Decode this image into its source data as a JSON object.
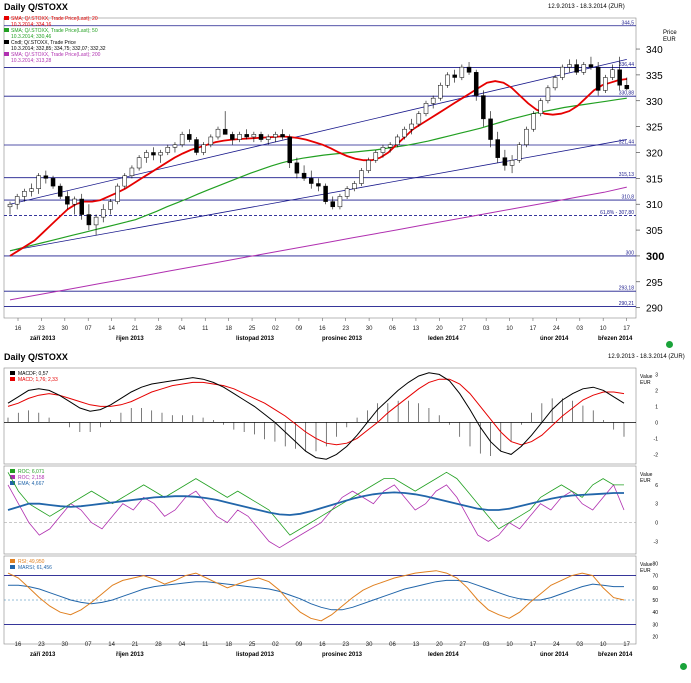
{
  "header": {
    "title": "Daily Q/STOXX",
    "date_range": "12.9.2013 - 18.3.2014 (ZUR)"
  },
  "lower_header": {
    "title": "Daily Q/STOXX",
    "date_range": "12.9.2013 - 18.3.2014 (ZUR)"
  },
  "colors": {
    "candle_up": "#ffffff",
    "candle_down": "#000000",
    "sma20": "#e60000",
    "sma50": "#22a022",
    "sma200": "#b030b0",
    "channel": "#1a1a8c",
    "hline": "#1a1a8c",
    "grid": "#d8d8d8",
    "macd_line": "#000000",
    "macd_signal": "#e60000",
    "roc_green": "#22a022",
    "roc_purple": "#b030b0",
    "roc_blue": "#2266aa",
    "rsi_orange": "#e08020",
    "rsi_blue": "#2266aa",
    "status_dot": "#1aa33a"
  },
  "price_legend": [
    {
      "text": "SMA; Q/.STOXX, Trade Price(Last); 20",
      "sub": "10.3.2014; 334,16",
      "color": "#e60000"
    },
    {
      "text": "SMA; Q/.STOXX, Trade Price(Last); 50",
      "sub": "10.3.2014; 330,46",
      "color": "#22a022"
    },
    {
      "text": "Cndl; Q/.STOXX, Trade Price",
      "sub": "10.3.2014; 332,85; 334,75; 332,07; 332,32",
      "color": "#000000"
    },
    {
      "text": "SMA; Q/.STOXX, Trade Price(Last); 200",
      "sub": "10.3.2014; 313,28",
      "color": "#b030b0"
    }
  ],
  "price_axis": {
    "unit_label": "Price",
    "currency": "EUR",
    "ticks": [
      "340",
      "335",
      "330",
      "325",
      "320",
      "315",
      "310",
      "305",
      "300",
      "295",
      "290"
    ]
  },
  "levels": [
    {
      "label": "344,5",
      "value": 344.5
    },
    {
      "label": "336,44",
      "value": 336.44
    },
    {
      "label": "330,88",
      "value": 330.88
    },
    {
      "label": "321,44",
      "value": 321.44
    },
    {
      "label": "315,13",
      "value": 315.13
    },
    {
      "label": "310,8",
      "value": 310.8
    },
    {
      "label": "61,8% - 307,80",
      "value": 307.8
    },
    {
      "label": "300",
      "value": 300
    },
    {
      "label": "293,18",
      "value": 293.18
    },
    {
      "label": "290,21",
      "value": 290.21
    }
  ],
  "x_axis": {
    "day_ticks": [
      "16",
      "23",
      "30",
      "07",
      "14",
      "21",
      "28",
      "04",
      "11",
      "18",
      "25",
      "02",
      "09",
      "16",
      "23",
      "30",
      "06",
      "13",
      "20",
      "27",
      "03",
      "10",
      "17",
      "24",
      "03",
      "10",
      "17"
    ],
    "months": [
      "září 2013",
      "říjen 2013",
      "listopad 2013",
      "prosinec 2013",
      "leden 2014",
      "únor 2014",
      "březen 2014"
    ]
  },
  "chart_data": [
    {
      "type": "candlestick",
      "title": "Daily Q/STOXX",
      "ylim": [
        288,
        346
      ],
      "ohlc": [
        [
          309.5,
          310.5,
          308,
          310
        ],
        [
          310,
          312,
          309,
          311.5
        ],
        [
          311.5,
          313,
          310.5,
          312.5
        ],
        [
          312.5,
          314,
          311.5,
          313
        ],
        [
          313,
          316,
          312,
          315.5
        ],
        [
          315.5,
          316.5,
          314,
          315
        ],
        [
          315,
          315.5,
          313,
          313.5
        ],
        [
          313.5,
          314,
          311,
          311.5
        ],
        [
          311.5,
          312.5,
          309,
          310
        ],
        [
          310,
          311.5,
          308,
          311
        ],
        [
          311,
          312,
          307,
          308
        ],
        [
          308,
          310,
          305,
          306
        ],
        [
          306,
          308,
          304,
          307.5
        ],
        [
          307.5,
          310,
          306.5,
          309
        ],
        [
          309,
          311,
          308,
          310.5
        ],
        [
          310.5,
          314,
          310,
          313.5
        ],
        [
          313.5,
          316,
          313,
          315.5
        ],
        [
          315.5,
          317.5,
          315,
          317
        ],
        [
          317,
          319.5,
          316.5,
          319
        ],
        [
          319,
          320.5,
          318,
          320
        ],
        [
          320,
          321,
          318.5,
          319.5
        ],
        [
          319.5,
          320.5,
          318,
          320
        ],
        [
          320,
          321.5,
          319.5,
          321
        ],
        [
          321,
          322,
          320,
          321.5
        ],
        [
          321.5,
          324,
          321,
          323.5
        ],
        [
          323.5,
          324.5,
          322,
          322.5
        ],
        [
          322.5,
          323,
          319.5,
          320
        ],
        [
          320,
          322,
          319.5,
          321.5
        ],
        [
          321.5,
          323.5,
          321,
          323
        ],
        [
          323,
          325,
          322.5,
          324.5
        ],
        [
          324.5,
          328,
          323.5,
          323.5
        ],
        [
          323.5,
          324,
          321.5,
          322.5
        ],
        [
          322.5,
          324,
          322,
          323.5
        ],
        [
          323.5,
          324.5,
          322.5,
          323
        ],
        [
          323,
          324,
          322,
          323.5
        ],
        [
          323.5,
          324,
          322,
          322.5
        ],
        [
          322.5,
          323.5,
          321.5,
          323
        ],
        [
          323,
          324,
          322,
          323.5
        ],
        [
          323.5,
          324.5,
          322.5,
          323
        ],
        [
          323,
          323.5,
          317,
          318
        ],
        [
          318,
          319,
          315,
          316
        ],
        [
          316,
          317.5,
          314.5,
          315
        ],
        [
          315,
          316.5,
          313,
          314
        ],
        [
          314,
          315,
          312.5,
          313.5
        ],
        [
          313.5,
          314,
          310,
          310.5
        ],
        [
          310.5,
          311.5,
          309,
          309.5
        ],
        [
          309.5,
          312,
          309,
          311.5
        ],
        [
          311.5,
          313.5,
          311,
          313
        ],
        [
          313,
          314.5,
          312.5,
          314
        ],
        [
          314,
          317,
          313.5,
          316.5
        ],
        [
          316.5,
          319,
          316,
          318.5
        ],
        [
          318.5,
          320.5,
          318,
          320
        ],
        [
          320,
          321.5,
          319,
          321
        ],
        [
          321,
          322,
          320,
          321.5
        ],
        [
          321.5,
          323.5,
          321,
          323
        ],
        [
          323,
          325,
          322.5,
          324.5
        ],
        [
          324.5,
          326.5,
          323.5,
          325.5
        ],
        [
          325.5,
          328,
          325,
          327.5
        ],
        [
          327.5,
          330,
          327,
          329.5
        ],
        [
          329.5,
          331,
          328.5,
          330.5
        ],
        [
          330.5,
          333.5,
          330,
          333
        ],
        [
          333,
          335.5,
          332.5,
          335
        ],
        [
          335,
          336,
          333.5,
          334.5
        ],
        [
          334.5,
          337,
          334,
          336.5
        ],
        [
          336.5,
          337.5,
          335,
          335.5
        ],
        [
          335.5,
          336,
          330,
          331
        ],
        [
          331,
          332,
          325,
          326.5
        ],
        [
          326.5,
          328,
          321,
          322.5
        ],
        [
          322.5,
          324,
          318,
          319
        ],
        [
          319,
          320.5,
          316.5,
          317.5
        ],
        [
          317.5,
          319.5,
          316,
          318.5
        ],
        [
          318.5,
          322,
          318,
          321.5
        ],
        [
          321.5,
          325,
          321,
          324.5
        ],
        [
          324.5,
          328,
          324,
          327.5
        ],
        [
          327.5,
          330.5,
          327,
          330
        ],
        [
          330,
          333,
          329.5,
          332.5
        ],
        [
          332.5,
          335,
          332,
          334.5
        ],
        [
          334.5,
          337,
          334,
          336.5
        ],
        [
          336.5,
          338,
          335.5,
          337
        ],
        [
          337,
          338,
          335,
          335.5
        ],
        [
          335.5,
          337.5,
          335,
          337
        ],
        [
          337,
          338.5,
          336,
          336.5
        ],
        [
          336.5,
          337.5,
          331,
          332
        ],
        [
          332,
          335,
          331.5,
          334.5
        ],
        [
          334.5,
          337,
          334,
          336
        ],
        [
          336,
          338.5,
          332,
          333
        ],
        [
          333,
          334.5,
          332,
          332.3
        ]
      ],
      "sma20": [
        300,
        301,
        302,
        303,
        304.5,
        306,
        307.5,
        309,
        310,
        310.5,
        310.5,
        310.8,
        311.5,
        312.2,
        313,
        314,
        315,
        316,
        317,
        318,
        319,
        319.8,
        320.5,
        321,
        321.5,
        322,
        322.3,
        322.5,
        322.6,
        322.7,
        322.8,
        322.9,
        323,
        323.1,
        323,
        322.8,
        322.5,
        322,
        321.5,
        320.8,
        320,
        319.3,
        318.8,
        318.5,
        318.5,
        319,
        320,
        321.5,
        323,
        324.5,
        325.5,
        326.5,
        327.5,
        328.5,
        329.5,
        330.5,
        331.5,
        332.5,
        333.5,
        333.8,
        333.5,
        332.5,
        331,
        329.5,
        328.3,
        327.5,
        327.3,
        327.5,
        328,
        329,
        330.5,
        332,
        333,
        333.5,
        334,
        334.2
      ],
      "sma50": [
        301,
        301.5,
        302,
        302.5,
        303,
        303.5,
        304,
        304.5,
        305,
        305.5,
        306,
        306.5,
        307,
        307.8,
        308.6,
        309.5,
        310.3,
        311.1,
        312,
        312.8,
        313.6,
        314.4,
        315.2,
        316,
        316.7,
        317.4,
        318,
        318.5,
        318.9,
        319.2,
        319.5,
        319.7,
        319.9,
        320.1,
        320.3,
        320.5,
        320.8,
        321.1,
        321.4,
        321.8,
        322.2,
        322.7,
        323.2,
        323.7,
        324.2,
        324.7,
        325.3,
        325.9,
        326.5,
        327,
        327.5,
        327.9,
        328.3,
        328.7,
        329,
        329.3,
        329.6,
        329.9,
        330.2,
        330.5
      ],
      "sma200": [
        291.5,
        292.3,
        293.1,
        293.9,
        294.7,
        295.5,
        296.3,
        297.1,
        297.9,
        298.7,
        299.5,
        300.3,
        301.1,
        301.9,
        302.7,
        303.5,
        304.3,
        305.1,
        305.9,
        306.7,
        307.5,
        308.3,
        309.1,
        309.9,
        310.7,
        311.5,
        312.3,
        313.3
      ],
      "channel_upper": {
        "from": [
          310,
          1
        ],
        "to": [
          338,
          86
        ]
      },
      "channel_lower": {
        "from": [
          301,
          1
        ],
        "to": [
          322.5,
          86
        ]
      },
      "series": [
        {
          "name": "SMA; Q/.STOXX, Trade Price(Last); 20"
        },
        {
          "name": "SMA; Q/.STOXX, Trade Price(Last); 50"
        },
        {
          "name": "SMA; Q/.STOXX, Trade Price(Last); 200"
        },
        {
          "name": "Cndl; Q/.STOXX, Trade Price"
        }
      ]
    },
    {
      "type": "line",
      "title": "MACD",
      "legend": [
        {
          "text": "MACDF; 0,57",
          "color": "#000000"
        },
        {
          "text": "MACD; 1,76; 2,33",
          "color": "#e60000"
        }
      ],
      "axis_title": "Value",
      "axis_unit": "EUR",
      "ticks": [
        "3",
        "2",
        "1",
        "0",
        "-1",
        "-2"
      ],
      "ylim": [
        -2.6,
        3.4
      ],
      "macd": [
        1.2,
        1.6,
        2.0,
        2.1,
        2.0,
        1.7,
        1.3,
        0.9,
        0.7,
        0.8,
        1.1,
        1.5,
        1.9,
        2.2,
        2.4,
        2.5,
        2.6,
        2.7,
        2.8,
        2.7,
        2.5,
        2.2,
        1.8,
        1.4,
        1.0,
        0.5,
        0.0,
        -0.6,
        -1.2,
        -1.8,
        -2.2,
        -2.3,
        -2.0,
        -1.5,
        -0.8,
        0.0,
        0.8,
        1.4,
        2.0,
        2.5,
        2.9,
        3.1,
        3.0,
        2.6,
        1.8,
        0.8,
        -0.3,
        -1.2,
        -1.8,
        -2.0,
        -1.5,
        -0.8,
        0.0,
        0.8,
        1.4,
        1.8,
        2.1,
        2.2,
        2.0,
        1.6,
        1.2
      ],
      "signal": [
        1.0,
        1.2,
        1.5,
        1.7,
        1.8,
        1.7,
        1.5,
        1.3,
        1.1,
        1.0,
        1.0,
        1.1,
        1.3,
        1.6,
        1.9,
        2.1,
        2.3,
        2.4,
        2.5,
        2.5,
        2.4,
        2.3,
        2.1,
        1.8,
        1.5,
        1.2,
        0.8,
        0.4,
        -0.1,
        -0.6,
        -1.0,
        -1.3,
        -1.4,
        -1.3,
        -1.0,
        -0.5,
        0.0,
        0.6,
        1.1,
        1.6,
        2.1,
        2.5,
        2.7,
        2.7,
        2.4,
        1.8,
        1.0,
        0.2,
        -0.6,
        -1.2,
        -1.4,
        -1.2,
        -0.8,
        -0.2,
        0.4,
        0.9,
        1.4,
        1.7,
        1.9,
        1.9,
        1.8
      ]
    },
    {
      "type": "line",
      "title": "ROC",
      "legend": [
        {
          "text": "ROC; 6,071",
          "color": "#22a022"
        },
        {
          "text": "ROC; 2,158",
          "color": "#b030b0"
        },
        {
          "text": "EMA; 4,667",
          "color": "#2266aa"
        }
      ],
      "axis_title": "Value",
      "axis_unit": "EUR",
      "ticks": [
        "6",
        "3",
        "0",
        "-3"
      ],
      "ylim": [
        -5,
        9
      ],
      "roc_green": [
        8,
        5,
        3,
        2,
        1,
        2,
        3,
        4,
        5,
        4,
        3,
        4,
        5,
        6,
        5,
        4,
        5,
        6,
        7,
        6,
        5,
        4,
        5,
        4,
        3,
        2,
        0,
        -2,
        -1,
        0,
        1,
        2,
        3,
        4,
        5,
        6,
        7,
        7,
        6,
        5,
        6,
        7,
        8,
        7,
        5,
        3,
        1,
        -1,
        0,
        1,
        2,
        4,
        5,
        6,
        5,
        4,
        6,
        7,
        6,
        6
      ],
      "roc_purple": [
        6,
        3,
        0,
        -2,
        -1,
        1,
        3,
        2,
        0,
        -1,
        1,
        3,
        2,
        4,
        3,
        1,
        2,
        4,
        5,
        3,
        1,
        0,
        2,
        1,
        -1,
        -3,
        -4,
        -3,
        -2,
        -1,
        0,
        2,
        4,
        5,
        4,
        3,
        5,
        6,
        4,
        2,
        3,
        5,
        6,
        4,
        1,
        -2,
        -3,
        -2,
        0,
        -1,
        1,
        3,
        2,
        4,
        5,
        3,
        2,
        4,
        6,
        2
      ],
      "ema": [
        2,
        2.5,
        3,
        3,
        2.8,
        2.6,
        2.5,
        2.6,
        2.8,
        3,
        3.2,
        3.4,
        3.6,
        3.8,
        4,
        4.1,
        4.2,
        4.2,
        4.1,
        3.9,
        3.6,
        3.2,
        2.8,
        2.4,
        2,
        1.6,
        1.3,
        1.2,
        1.4,
        1.8,
        2.3,
        2.8,
        3.3,
        3.8,
        4.2,
        4.5,
        4.7,
        4.8,
        4.7,
        4.5,
        4.2,
        3.8,
        3.4,
        3,
        2.6,
        2.2,
        2,
        2,
        2.2,
        2.6,
        3,
        3.4,
        3.8,
        4.1,
        4.3,
        4.4,
        4.5,
        4.6,
        4.7,
        4.7
      ]
    },
    {
      "type": "line",
      "title": "RSI",
      "legend": [
        {
          "text": "RSI; 49,950",
          "color": "#e08020"
        },
        {
          "text": "MARSI; 61,456",
          "color": "#2266aa"
        }
      ],
      "axis_title": "Value",
      "axis_unit": "EUR",
      "ticks": [
        "80",
        "70",
        "60",
        "50",
        "40",
        "30",
        "20"
      ],
      "ylim": [
        14,
        86
      ],
      "rsi": [
        72,
        68,
        60,
        52,
        45,
        40,
        38,
        42,
        48,
        55,
        62,
        66,
        68,
        70,
        67,
        63,
        66,
        70,
        72,
        68,
        64,
        60,
        63,
        66,
        68,
        65,
        58,
        48,
        40,
        35,
        33,
        38,
        45,
        52,
        58,
        62,
        65,
        68,
        70,
        72,
        73,
        74,
        72,
        68,
        60,
        50,
        42,
        38,
        35,
        40,
        48,
        55,
        62,
        66,
        70,
        72,
        70,
        60,
        52,
        50
      ],
      "marsi": [
        62,
        62,
        61,
        59,
        56,
        53,
        50,
        48,
        47,
        48,
        50,
        53,
        56,
        59,
        61,
        62,
        63,
        64,
        65,
        65,
        64,
        63,
        62,
        61,
        60,
        59,
        57,
        54,
        51,
        47,
        44,
        42,
        42,
        44,
        47,
        50,
        53,
        56,
        59,
        61,
        63,
        65,
        66,
        66,
        65,
        62,
        59,
        56,
        53,
        51,
        50,
        50,
        52,
        55,
        58,
        61,
        63,
        62,
        61,
        61
      ]
    }
  ]
}
